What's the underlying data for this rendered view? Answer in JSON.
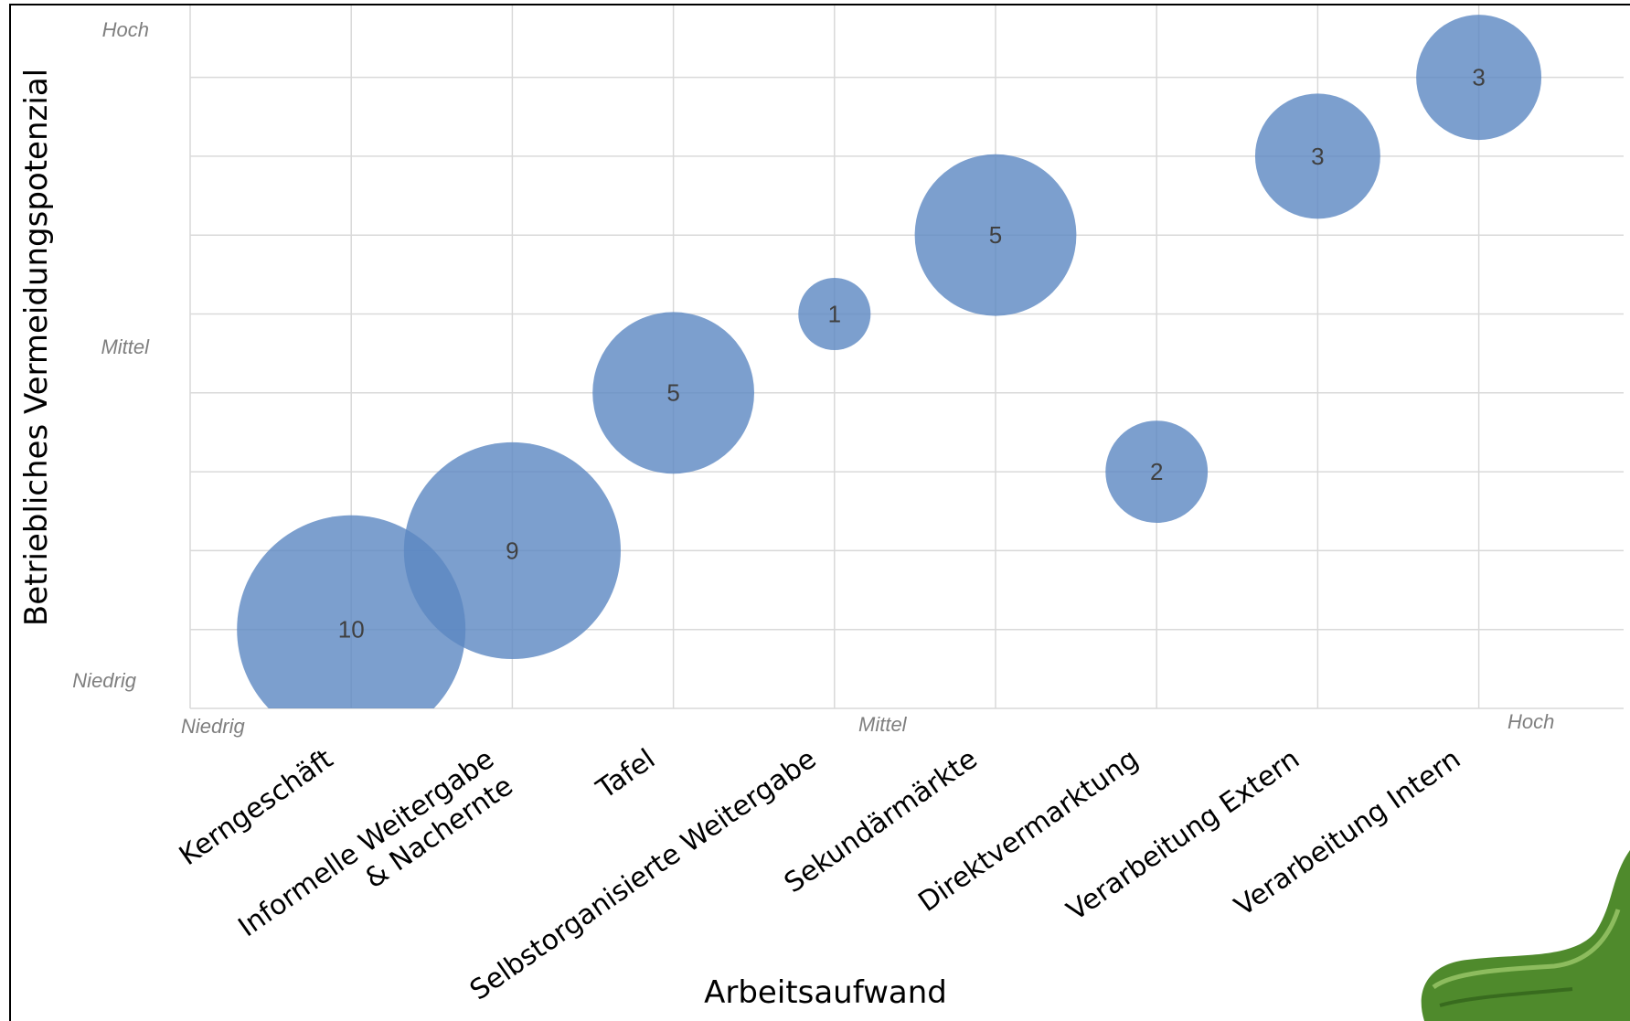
{
  "chart_data": {
    "type": "bubble",
    "xlabel": "Arbeitsaufwand",
    "ylabel": "Betriebliches Vermeidungspotenzial",
    "x_ticks": [
      "Niedrig",
      "Mittel",
      "Hoch"
    ],
    "y_ticks": [
      "Hoch",
      "Mittel",
      "Niedrig"
    ],
    "categories": [
      "Kerngeschäft",
      "Informelle Weitergabe\n& Nachernte",
      "Tafel",
      "Selbstorganisierte Weitergabe",
      "Sekundärmärkte",
      "Direktvermarktung",
      "Verarbeitung Extern",
      "Verarbeitung Intern"
    ],
    "points": [
      {
        "category": "Kerngeschäft",
        "x": 1,
        "y": 1,
        "size": 10
      },
      {
        "category": "Informelle Weitergabe & Nachernte",
        "x": 2,
        "y": 2,
        "size": 9
      },
      {
        "category": "Tafel",
        "x": 3,
        "y": 4,
        "size": 5
      },
      {
        "category": "Selbstorganisierte Weitergabe",
        "x": 4,
        "y": 5,
        "size": 1
      },
      {
        "category": "Sekundärmärkte",
        "x": 5,
        "y": 6,
        "size": 5
      },
      {
        "category": "Direktvermarktung",
        "x": 6,
        "y": 3,
        "size": 2
      },
      {
        "category": "Verarbeitung Extern",
        "x": 7,
        "y": 7,
        "size": 3
      },
      {
        "category": "Verarbeitung Intern",
        "x": 8,
        "y": 8,
        "size": 3
      }
    ],
    "xlim": [
      0,
      9
    ],
    "ylim": [
      0,
      9
    ],
    "grid": true,
    "colors": {
      "bubble": "#5b87c2",
      "grid": "#d9d9d9",
      "tick": "#7f7f7f"
    }
  }
}
